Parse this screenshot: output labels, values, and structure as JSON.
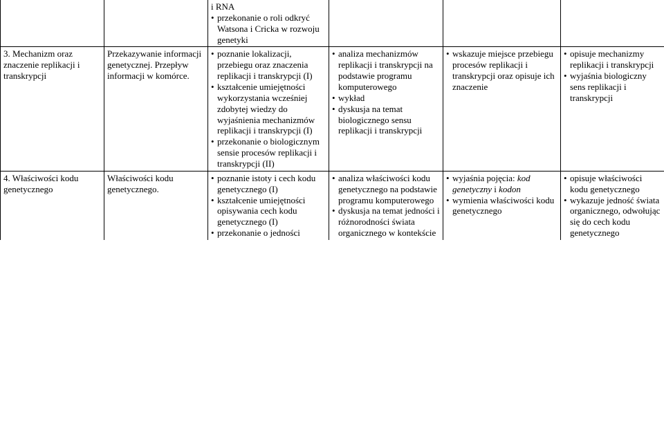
{
  "rows": [
    {
      "c1": "",
      "c2": "",
      "c3_plain": "i RNA",
      "c3_bullets": [
        "przekonanie o roli odkryć Watsona i Cricka w rozwoju genetyki"
      ],
      "c4": "",
      "c5": "",
      "c6": ""
    },
    {
      "c1": "3. Mechanizm oraz znaczenie replikacji i transkrypcji",
      "c2": "Przekazywanie informacji genetycznej. Przepływ informacji w komórce.",
      "c3_bullets": [
        "poznanie lokalizacji, przebiegu oraz znaczenia replikacji i transkrypcji (I)",
        "kształcenie umiejętności wykorzystania wcześniej zdobytej wiedzy do wyjaśnienia mechanizmów replikacji i transkrypcji (I)",
        "przekonanie o biologicznym sensie procesów replikacji i transkrypcji (II)"
      ],
      "c4_bullets": [
        "analiza mechanizmów replikacji i transkrypcji na podstawie programu komputerowego",
        "wykład",
        "dyskusja na temat biologicznego sensu replikacji i transkrypcji"
      ],
      "c5_bullets": [
        "wskazuje miejsce przebiegu procesów replikacji i transkrypcji oraz opisuje ich znaczenie"
      ],
      "c6_bullets": [
        "opisuje mechanizmy replikacji i transkrypcji",
        "wyjaśnia biologiczny sens replikacji i transkrypcji"
      ]
    },
    {
      "c1": "4. Właściwości kodu genetycznego",
      "c2": "Właściwości kodu genetycznego.",
      "c3_bullets": [
        "poznanie istoty i cech kodu genetycznego (I)",
        "kształcenie umiejętności opisywania cech kodu genetycznego (I)",
        "przekonanie o jedności"
      ],
      "c4_bullets": [
        "analiza właściwości kodu genetycznego na podstawie programu komputerowego",
        "dyskusja na temat jedności i różnorodności świata organicznego w kontekście"
      ],
      "c5_bullets_html": [
        "wyjaśnia pojęcia: <em>kod genetyczny</em> i <em>kodon</em>",
        "wymienia właściwości kodu genetycznego"
      ],
      "c6_bullets": [
        "opisuje właściwości kodu genetycznego",
        "wykazuje jedność świata organicznego, odwołując się do cech kodu genetycznego"
      ]
    }
  ]
}
